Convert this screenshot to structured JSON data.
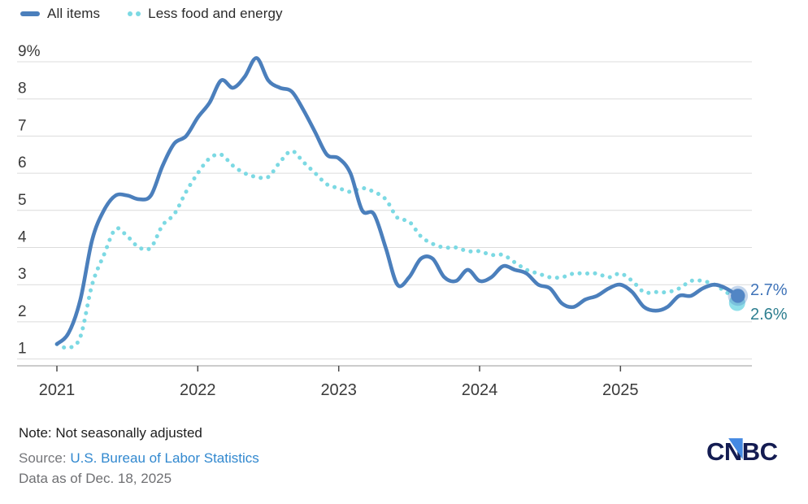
{
  "legend": {
    "items": [
      {
        "label": "All items"
      },
      {
        "label": "Less food and energy"
      }
    ]
  },
  "chart_data": {
    "type": "line",
    "frequency": "monthly",
    "x_start": "2021-01",
    "x_end": "2025-11",
    "x_tick_labels": [
      "2021",
      "2022",
      "2023",
      "2024",
      "2025"
    ],
    "y_tick_labels": [
      "9%",
      "8",
      "7",
      "6",
      "5",
      "4",
      "3",
      "2",
      "1"
    ],
    "y_gridline_values": [
      9,
      8,
      7,
      6,
      5,
      4,
      3,
      2,
      1
    ],
    "ylim": [
      0.7,
      9.4
    ],
    "grid": true,
    "legend_position": "top-left",
    "series": [
      {
        "name": "All items",
        "line_style": "solid",
        "color": "#4b7fbc",
        "marker_color": "#5286c5",
        "end_label": "2.7%",
        "end_label_color": "#3f73b8",
        "values": [
          1.4,
          1.7,
          2.6,
          4.2,
          5.0,
          5.4,
          5.4,
          5.3,
          5.4,
          6.2,
          6.8,
          7.0,
          7.5,
          7.9,
          8.5,
          8.3,
          8.6,
          9.1,
          8.5,
          8.3,
          8.2,
          7.7,
          7.1,
          6.5,
          6.4,
          6.0,
          5.0,
          4.9,
          4.0,
          3.0,
          3.2,
          3.7,
          3.7,
          3.2,
          3.1,
          3.4,
          3.1,
          3.2,
          3.5,
          3.4,
          3.3,
          3.0,
          2.9,
          2.5,
          2.4,
          2.6,
          2.7,
          2.9,
          3.0,
          2.8,
          2.4,
          2.3,
          2.4,
          2.7,
          2.7,
          2.9,
          3.0,
          2.9,
          2.7
        ]
      },
      {
        "name": "Less food and energy",
        "line_style": "dotted",
        "color": "#7cd9e3",
        "marker_color": "#8fdfe9",
        "end_label": "2.6%",
        "end_label_color": "#2e7f90",
        "values": [
          1.4,
          1.3,
          1.6,
          3.0,
          3.8,
          4.5,
          4.3,
          4.0,
          4.0,
          4.6,
          4.9,
          5.5,
          6.0,
          6.4,
          6.5,
          6.2,
          6.0,
          5.9,
          5.9,
          6.3,
          6.6,
          6.3,
          6.0,
          5.7,
          5.6,
          5.5,
          5.6,
          5.5,
          5.3,
          4.8,
          4.7,
          4.3,
          4.1,
          4.0,
          4.0,
          3.9,
          3.9,
          3.8,
          3.8,
          3.6,
          3.4,
          3.3,
          3.2,
          3.2,
          3.3,
          3.3,
          3.3,
          3.2,
          3.3,
          3.1,
          2.8,
          2.8,
          2.8,
          2.9,
          3.1,
          3.1,
          3.0,
          2.8,
          2.6
        ]
      }
    ]
  },
  "footer": {
    "note": "Note: Not seasonally adjusted",
    "source_prefix": "Source: ",
    "source_link": "U.S. Bureau of Labor Statistics",
    "link_color": "#3188cf",
    "data_as_of": "Data as of Dec. 18, 2025"
  },
  "logo": {
    "c": "C",
    "n": "N",
    "bc": "BC",
    "text_color": "#141c52",
    "triangle_color": "#4489e2"
  }
}
